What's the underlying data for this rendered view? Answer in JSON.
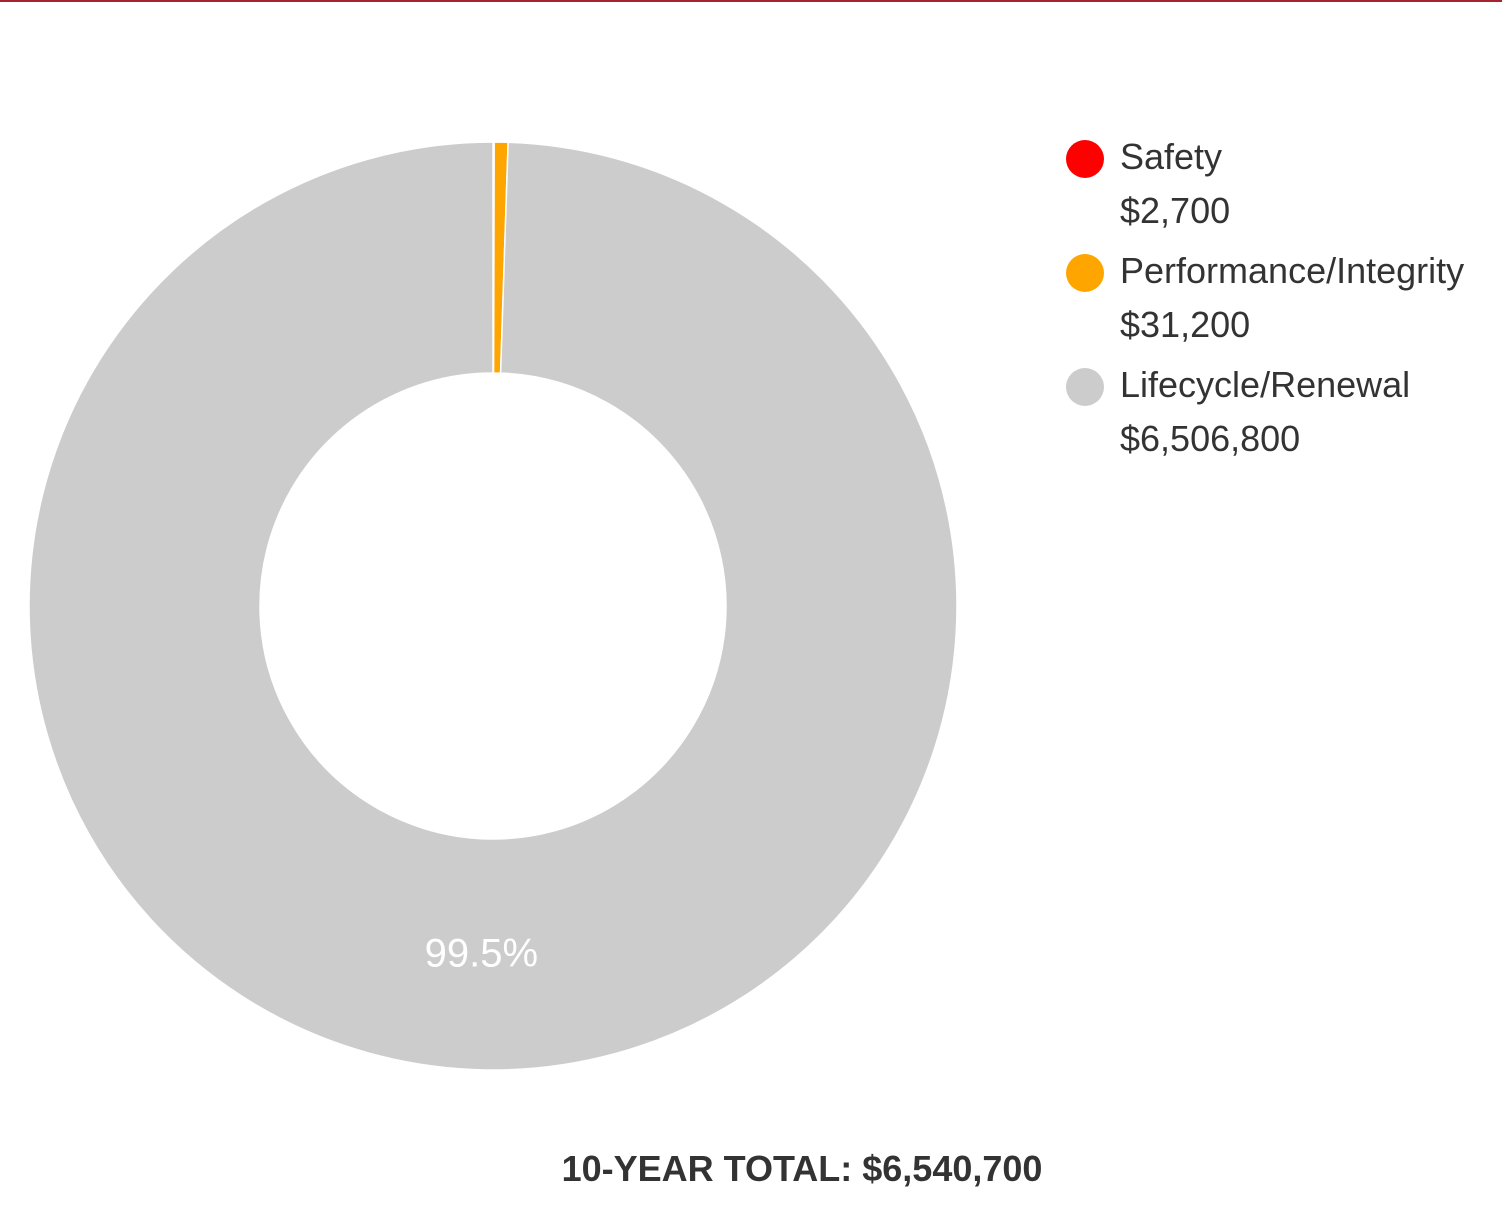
{
  "colors": {
    "top_rule": "#a6232f",
    "text": "#333333",
    "slice_label": "#ffffff"
  },
  "chart_data": {
    "type": "pie",
    "donut": true,
    "series": [
      {
        "name": "Safety",
        "value_label": "$2,700",
        "value": 2700,
        "color": "#ff0000"
      },
      {
        "name": "Performance/Integrity",
        "value_label": "$31,200",
        "value": 31200,
        "color": "#ffa500"
      },
      {
        "name": "Lifecycle/Renewal",
        "value_label": "$6,506,800",
        "value": 6506800,
        "color": "#cccccc"
      }
    ],
    "slice_labels": [
      {
        "series": "Lifecycle/Renewal",
        "text": "99.5%"
      }
    ],
    "legend_position": "right",
    "total": "10-YEAR TOTAL: $6,540,700"
  }
}
